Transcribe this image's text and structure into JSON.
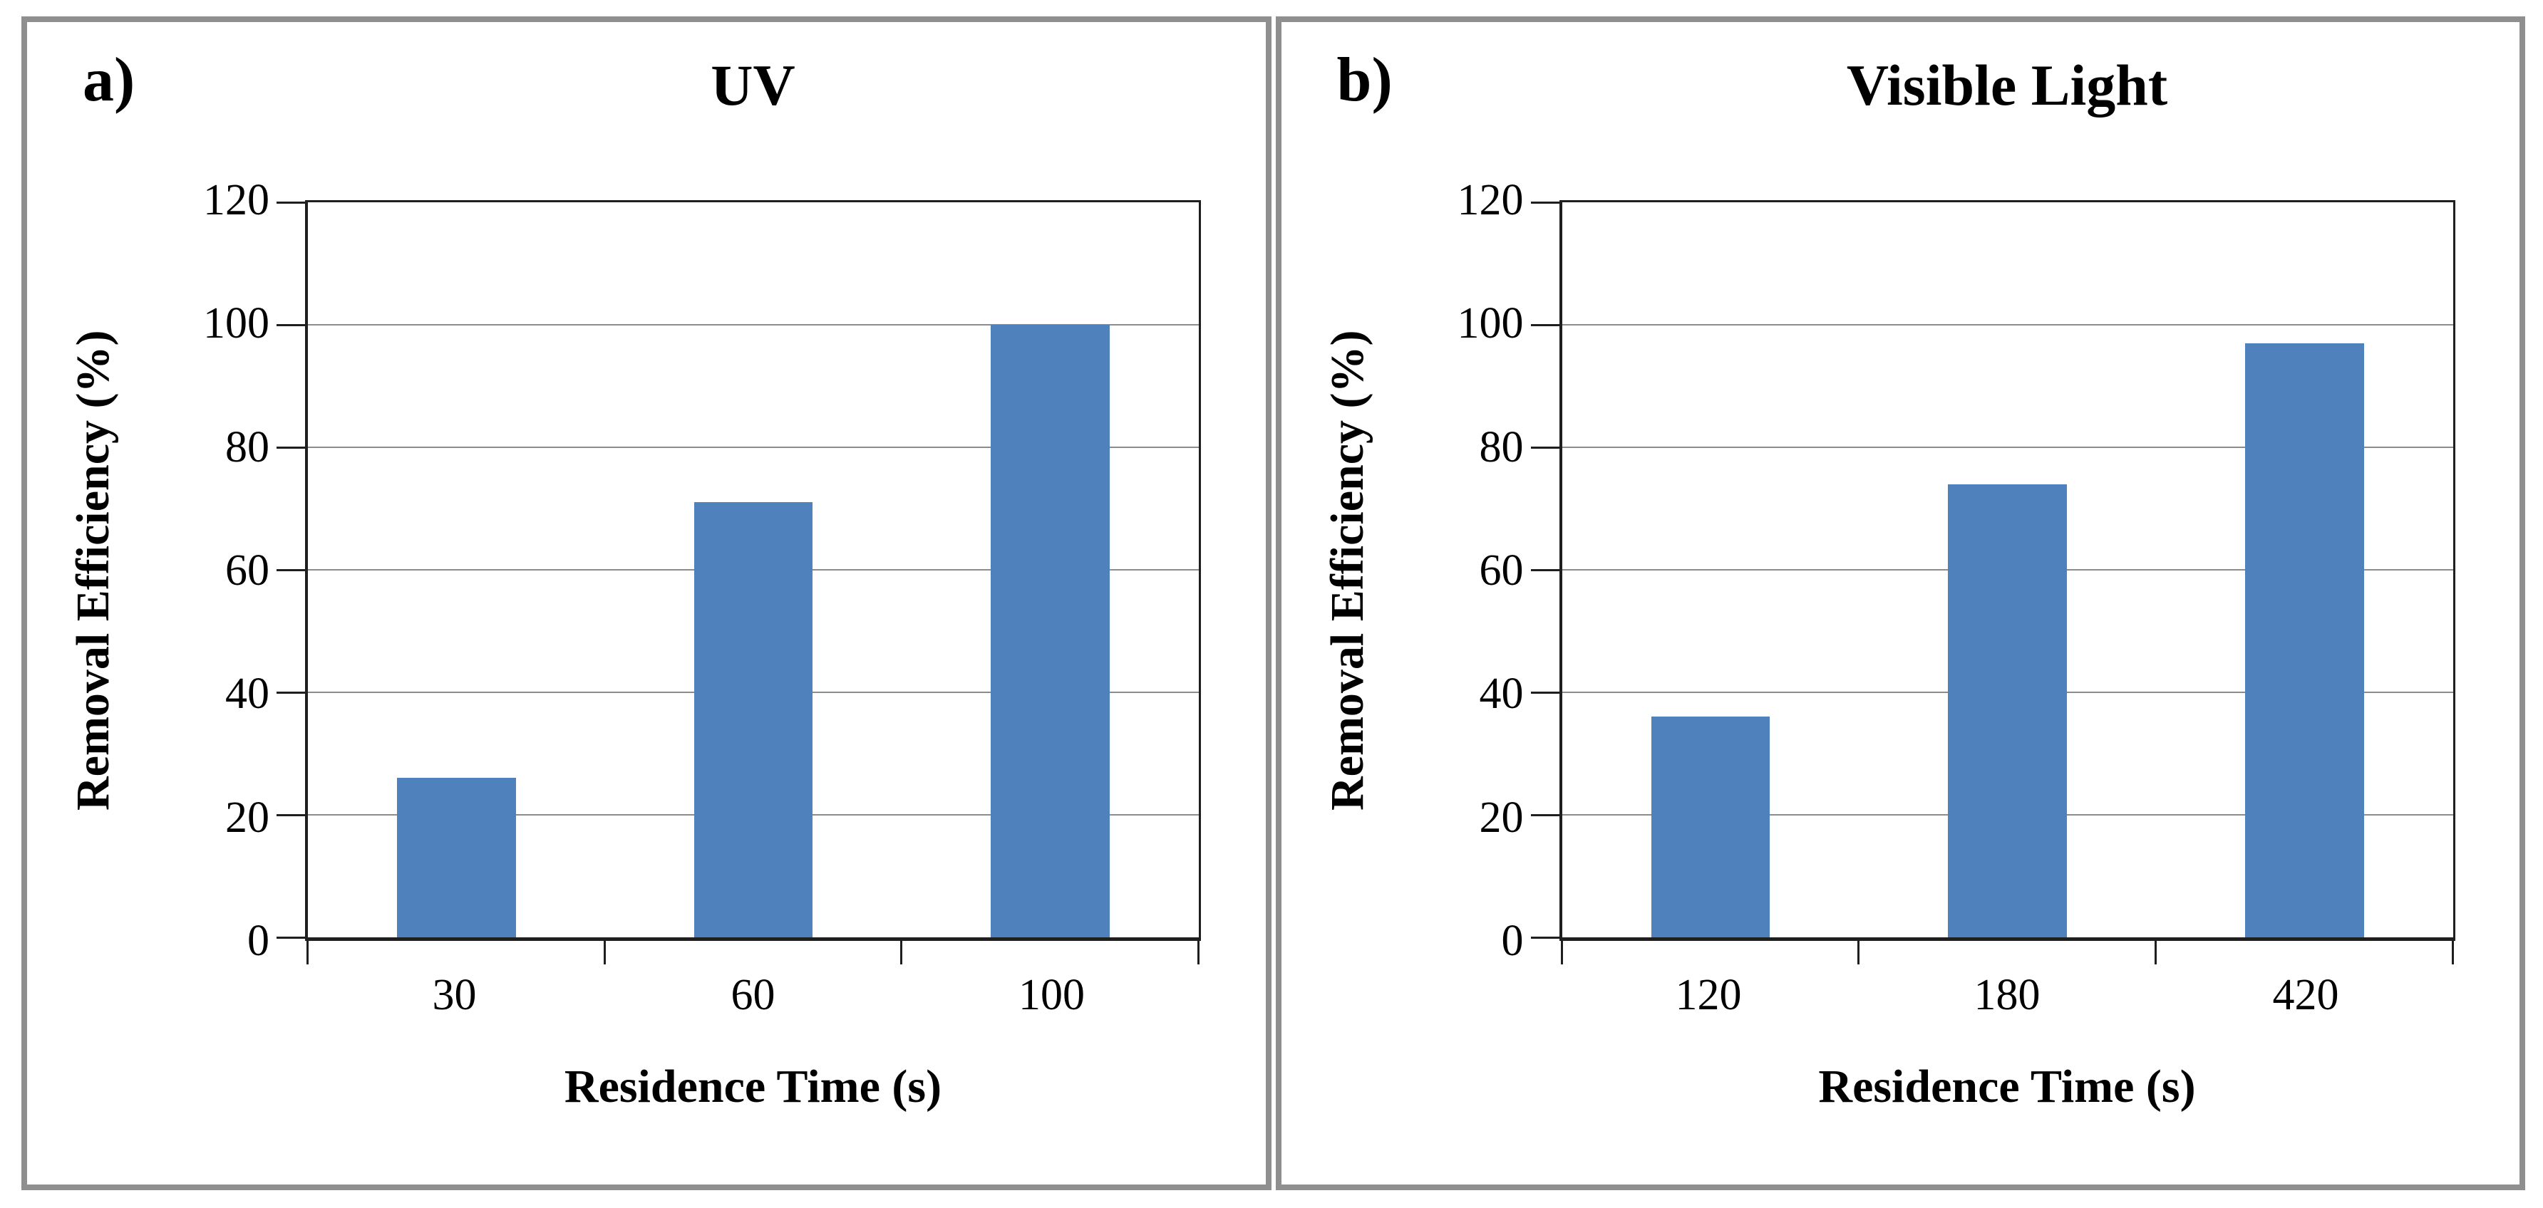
{
  "figure": {
    "bar_color": "#4f81bd",
    "panel_border_color": "#8f8f8f",
    "gridline_color": "#8c8c8c",
    "axis_color": "#1f1f1f"
  },
  "chart_data": [
    {
      "type": "bar",
      "panel_label": "a)",
      "title": "UV",
      "categories": [
        "30",
        "60",
        "100"
      ],
      "values": [
        26,
        71,
        100
      ],
      "xlabel": "Residence Time (s)",
      "ylabel": "Removal Efficiency (%)",
      "ylim": [
        0,
        120
      ],
      "yticks": [
        0,
        20,
        40,
        60,
        80,
        100,
        120
      ],
      "grid": true,
      "legend": "none"
    },
    {
      "type": "bar",
      "panel_label": "b)",
      "title": "Visible Light",
      "categories": [
        "120",
        "180",
        "420"
      ],
      "values": [
        36,
        74,
        97
      ],
      "xlabel": "Residence Time (s)",
      "ylabel": "Removal Efficiency (%)",
      "ylim": [
        0,
        120
      ],
      "yticks": [
        0,
        20,
        40,
        60,
        80,
        100,
        120
      ],
      "grid": true,
      "legend": "none"
    }
  ]
}
